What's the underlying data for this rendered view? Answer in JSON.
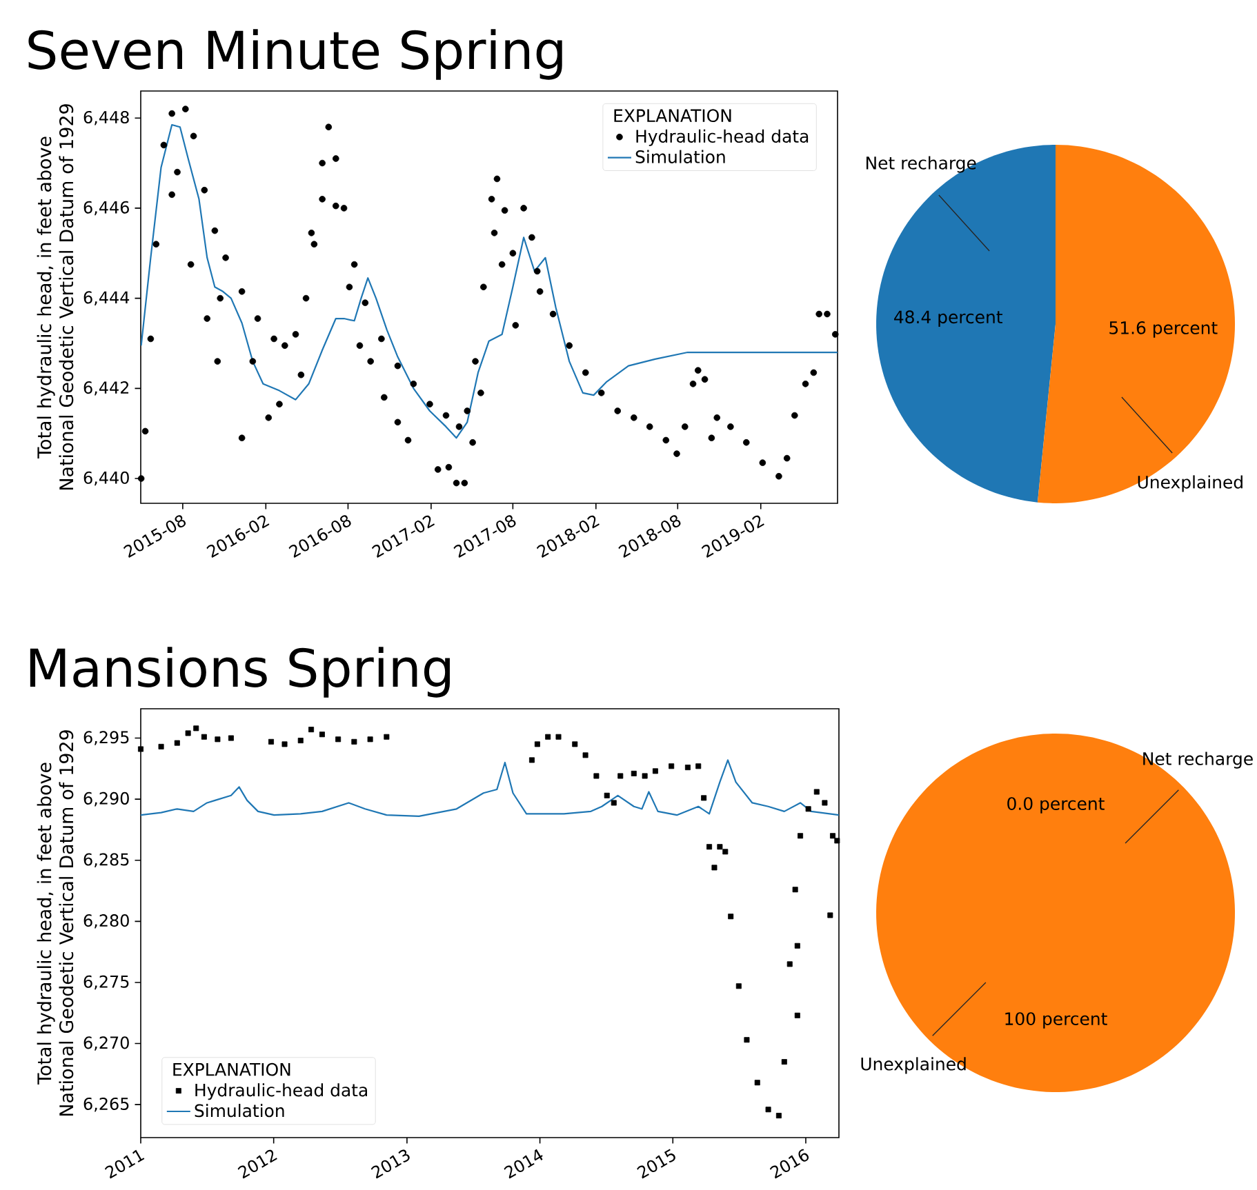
{
  "chart_data": [
    {
      "type": "scatter",
      "title": "Seven Minute Spring",
      "ylabel": "Total hydraulic head, in feet above National Geodetic Vertical Datum of 1929",
      "legend_title": "EXPLANATION",
      "legend": "top right",
      "xlim": [
        "2015-04-30",
        "2019-07-21"
      ],
      "ylim": [
        6439.45,
        6448.6
      ],
      "xticks": [
        "2015-08",
        "2016-02",
        "2016-08",
        "2017-02",
        "2017-08",
        "2018-02",
        "2018-08",
        "2019-02"
      ],
      "yticks": [
        {
          "value": 6440,
          "label": "6,440"
        },
        {
          "value": 6442,
          "label": "6,442"
        },
        {
          "value": 6444,
          "label": "6,444"
        },
        {
          "value": 6446,
          "label": "6,446"
        },
        {
          "value": 6448,
          "label": "6,448"
        }
      ],
      "series": [
        {
          "name": "Hydraulic-head data",
          "type": "scatter",
          "marker": "circle",
          "color": "#000000",
          "x": [
            "2015-05-01",
            "2015-05-10",
            "2015-05-22",
            "2015-06-03",
            "2015-06-20",
            "2015-07-08",
            "2015-08-07",
            "2015-08-25",
            "2015-09-18",
            "2015-10-11",
            "2015-11-04",
            "2015-12-10",
            "2016-01-14",
            "2016-02-19",
            "2016-03-14",
            "2016-04-07",
            "2016-04-30",
            "2016-05-18",
            "2016-06-05",
            "2016-06-19",
            "2016-07-05",
            "2016-07-23",
            "2016-08-15",
            "2016-09-08",
            "2016-10-14",
            "2016-11-19",
            "2016-12-24",
            "2017-01-29",
            "2017-03-06",
            "2017-04-04",
            "2017-04-22",
            "2017-05-10",
            "2017-05-28",
            "2017-06-15",
            "2017-06-27",
            "2017-07-14",
            "2017-08-01",
            "2017-08-25",
            "2017-09-12",
            "2017-09-30",
            "2017-10-29",
            "2017-12-04",
            "2018-01-09",
            "2018-02-13",
            "2018-03-21",
            "2018-04-26",
            "2018-05-31",
            "2018-07-06",
            "2018-07-30",
            "2018-08-17",
            "2018-09-04",
            "2018-09-15",
            "2018-09-30",
            "2018-10-15",
            "2018-10-27",
            "2018-11-26",
            "2018-12-31",
            "2019-02-05",
            "2019-03-13",
            "2019-03-31",
            "2019-04-17",
            "2019-05-11",
            "2019-05-29",
            "2019-06-10",
            "2019-06-28",
            "2019-07-16",
            "2015-07-08",
            "2015-07-20",
            "2015-08-19",
            "2015-09-24",
            "2015-10-17",
            "2015-10-23",
            "2015-12-10",
            "2016-01-03",
            "2016-02-07",
            "2016-03-02",
            "2016-04-19",
            "2016-05-12",
            "2016-06-05",
            "2016-07-05",
            "2016-08-04",
            "2016-08-27",
            "2016-09-20",
            "2016-10-20",
            "2016-11-19",
            "2016-12-12",
            "2017-02-16",
            "2017-03-12",
            "2017-03-29",
            "2017-04-16",
            "2017-05-04",
            "2017-05-22",
            "2017-06-21",
            "2017-07-08",
            "2017-08-07",
            "2017-09-24"
          ],
          "values": [
            6440.0,
            6441.05,
            6443.1,
            6445.2,
            6447.4,
            6448.1,
            6448.2,
            6447.6,
            6446.4,
            6445.5,
            6444.9,
            6444.15,
            6443.55,
            6443.1,
            6442.95,
            6443.2,
            6444.0,
            6445.2,
            6447.0,
            6447.8,
            6447.1,
            6446.0,
            6444.75,
            6443.9,
            6443.1,
            6442.5,
            6442.1,
            6441.65,
            6441.4,
            6441.15,
            6441.5,
            6442.6,
            6444.25,
            6446.2,
            6446.65,
            6445.95,
            6445.0,
            6446.0,
            6445.35,
            6444.15,
            6443.65,
            6442.95,
            6442.35,
            6441.9,
            6441.5,
            6441.35,
            6441.15,
            6440.85,
            6440.55,
            6441.15,
            6442.1,
            6442.4,
            6442.2,
            6440.9,
            6441.35,
            6441.15,
            6440.8,
            6440.35,
            6440.05,
            6440.45,
            6441.4,
            6442.1,
            6442.35,
            6443.65,
            6443.65,
            6443.2,
            6446.3,
            6446.8,
            6444.75,
            6443.55,
            6442.6,
            6444.0,
            6440.9,
            6442.6,
            6441.35,
            6441.65,
            6442.3,
            6445.45,
            6446.2,
            6446.05,
            6444.25,
            6442.95,
            6442.6,
            6441.8,
            6441.25,
            6440.85,
            6440.2,
            6440.25,
            6439.9,
            6439.9,
            6440.8,
            6441.9,
            6445.45,
            6444.75,
            6443.4,
            6444.6
          ]
        },
        {
          "name": "Simulation",
          "type": "line",
          "color": "#1f77b4",
          "x": [
            "2015-05-01",
            "2015-05-22",
            "2015-06-14",
            "2015-07-08",
            "2015-07-26",
            "2015-08-13",
            "2015-09-06",
            "2015-09-24",
            "2015-10-11",
            "2015-10-29",
            "2015-11-16",
            "2015-12-10",
            "2016-01-03",
            "2016-01-26",
            "2016-03-02",
            "2016-04-07",
            "2016-05-06",
            "2016-06-05",
            "2016-07-05",
            "2016-07-23",
            "2016-08-15",
            "2016-08-30",
            "2016-09-14",
            "2016-10-02",
            "2016-10-26",
            "2016-11-19",
            "2016-12-24",
            "2017-01-29",
            "2017-03-06",
            "2017-03-29",
            "2017-04-22",
            "2017-05-16",
            "2017-06-09",
            "2017-07-08",
            "2017-08-01",
            "2017-08-25",
            "2017-09-18",
            "2017-10-12",
            "2017-11-04",
            "2017-12-04",
            "2018-01-03",
            "2018-01-27",
            "2018-02-25",
            "2018-04-14",
            "2018-06-12",
            "2018-08-23",
            "2019-07-21"
          ],
          "values": [
            6442.95,
            6444.9,
            6446.9,
            6447.85,
            6447.8,
            6447.1,
            6446.2,
            6444.9,
            6444.25,
            6444.15,
            6444.0,
            6443.45,
            6442.6,
            6442.1,
            6441.95,
            6441.75,
            6442.1,
            6442.85,
            6443.55,
            6443.55,
            6443.5,
            6444.0,
            6444.45,
            6444.0,
            6443.3,
            6442.7,
            6442.0,
            6441.5,
            6441.15,
            6440.9,
            6441.25,
            6442.35,
            6443.05,
            6443.2,
            6444.25,
            6445.35,
            6444.6,
            6444.9,
            6443.8,
            6442.6,
            6441.9,
            6441.85,
            6442.15,
            6442.5,
            6442.65,
            6442.8,
            6442.8
          ]
        }
      ]
    },
    {
      "type": "pie",
      "categories": [
        "Net recharge",
        "Unexplained"
      ],
      "values": [
        48.4,
        51.6
      ],
      "colors": [
        "#1f77b4",
        "#ff7f0e"
      ],
      "value_labels": [
        "48.4 percent",
        "51.6 percent"
      ]
    },
    {
      "type": "scatter",
      "title": "Mansions Spring",
      "ylabel": "Total hydraulic head, in feet above National Geodetic Vertical Datum of 1929",
      "legend_title": "EXPLANATION",
      "legend": "bottom left",
      "xlim": [
        "2011-01-01",
        "2016-04-01"
      ],
      "ylim": [
        6262.3,
        6297.4
      ],
      "xticks": [
        "2011",
        "2012",
        "2013",
        "2014",
        "2015",
        "2016"
      ],
      "yticks": [
        {
          "value": 6265,
          "label": "6,265"
        },
        {
          "value": 6270,
          "label": "6,270"
        },
        {
          "value": 6275,
          "label": "6,275"
        },
        {
          "value": 6280,
          "label": "6,280"
        },
        {
          "value": 6285,
          "label": "6,285"
        },
        {
          "value": 6290,
          "label": "6,290"
        },
        {
          "value": 6295,
          "label": "6,295"
        }
      ],
      "series": [
        {
          "name": "Hydraulic-head data",
          "type": "scatter",
          "marker": "square",
          "color": "#000000",
          "x": [
            "2011-01-01",
            "2011-02-26",
            "2011-04-11",
            "2011-05-11",
            "2011-06-02",
            "2011-06-24",
            "2011-07-31",
            "2011-09-06",
            "2011-12-25",
            "2012-01-31",
            "2012-03-15",
            "2012-04-13",
            "2012-05-13",
            "2012-06-26",
            "2012-08-09",
            "2012-09-22",
            "2012-11-06",
            "2013-12-10",
            "2013-12-25",
            "2014-01-23",
            "2014-02-21",
            "2014-04-07",
            "2014-05-06",
            "2014-06-05",
            "2014-07-04",
            "2014-07-23",
            "2014-08-10",
            "2014-09-16",
            "2014-10-16",
            "2014-11-14",
            "2014-12-28",
            "2015-02-11",
            "2015-03-12",
            "2015-03-27",
            "2015-04-11",
            "2015-04-25",
            "2015-05-10",
            "2015-05-25",
            "2015-06-09",
            "2015-07-01",
            "2015-07-23",
            "2015-08-21",
            "2015-09-20",
            "2015-10-19",
            "2015-11-03",
            "2015-11-18",
            "2015-12-03",
            "2015-12-17",
            "2016-01-08",
            "2016-01-31",
            "2016-02-22",
            "2016-03-15",
            "2016-03-27",
            "2015-12-09",
            "2015-12-09",
            "2016-03-08"
          ],
          "values": [
            6294.1,
            6294.3,
            6294.6,
            6295.4,
            6295.8,
            6295.1,
            6294.9,
            6295.0,
            6294.7,
            6294.5,
            6294.8,
            6295.7,
            6295.3,
            6294.9,
            6294.7,
            6294.9,
            6295.1,
            6293.2,
            6294.5,
            6295.1,
            6295.1,
            6294.5,
            6293.6,
            6291.9,
            6290.3,
            6289.7,
            6291.9,
            6292.1,
            6291.9,
            6292.3,
            6292.7,
            6292.6,
            6292.7,
            6290.1,
            6286.1,
            6284.4,
            6286.1,
            6285.7,
            6280.4,
            6274.7,
            6270.3,
            6266.8,
            6264.6,
            6264.1,
            6268.5,
            6276.5,
            6282.6,
            6287.0,
            6289.2,
            6290.6,
            6289.7,
            6287.0,
            6286.6,
            6272.3,
            6278.0,
            6280.5
          ]
        },
        {
          "name": "Simulation",
          "type": "line",
          "color": "#1f77b4",
          "x": [
            "2011-01-01",
            "2011-02-26",
            "2011-04-11",
            "2011-05-26",
            "2011-07-02",
            "2011-07-24",
            "2011-09-06",
            "2011-09-28",
            "2011-10-20",
            "2011-11-19",
            "2012-01-02",
            "2012-03-15",
            "2012-05-13",
            "2012-07-25",
            "2012-09-08",
            "2012-11-06",
            "2013-02-03",
            "2013-05-17",
            "2013-07-30",
            "2013-09-05",
            "2013-09-27",
            "2013-10-19",
            "2013-11-25",
            "2014-03-08",
            "2014-05-21",
            "2014-06-20",
            "2014-08-03",
            "2014-09-16",
            "2014-10-08",
            "2014-10-27",
            "2014-11-21",
            "2015-01-12",
            "2015-03-12",
            "2015-04-11",
            "2015-05-10",
            "2015-06-01",
            "2015-06-23",
            "2015-08-07",
            "2015-09-20",
            "2015-11-03",
            "2015-12-17",
            "2016-01-16",
            "2016-04-01"
          ],
          "values": [
            6288.7,
            6288.9,
            6289.2,
            6289.0,
            6289.7,
            6289.9,
            6290.3,
            6291.0,
            6289.9,
            6289.0,
            6288.7,
            6288.8,
            6289.0,
            6289.7,
            6289.2,
            6288.7,
            6288.6,
            6289.2,
            6290.5,
            6290.8,
            6293.0,
            6290.5,
            6288.8,
            6288.8,
            6289.0,
            6289.4,
            6290.3,
            6289.4,
            6289.2,
            6290.6,
            6289.0,
            6288.7,
            6289.4,
            6288.8,
            6291.4,
            6293.2,
            6291.4,
            6289.7,
            6289.4,
            6289.0,
            6289.7,
            6289.0,
            6288.7
          ]
        }
      ]
    },
    {
      "type": "pie",
      "categories": [
        "Net recharge",
        "Unexplained"
      ],
      "values": [
        0.0,
        100
      ],
      "colors": [
        "#1f77b4",
        "#ff7f0e"
      ],
      "value_labels": [
        "0.0 percent",
        "100 percent"
      ]
    }
  ]
}
